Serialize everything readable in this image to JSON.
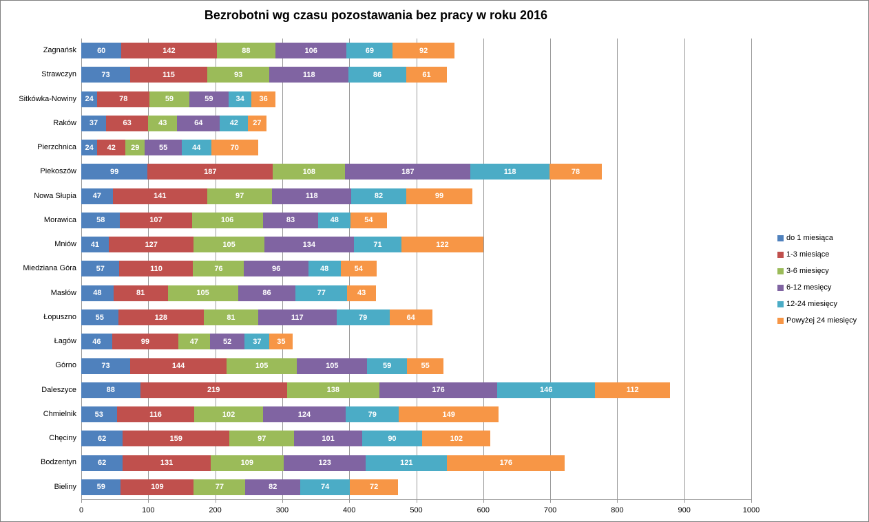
{
  "title": "Bezrobotni wg czasu pozostawania bez pracy w roku 2016",
  "chart_data": {
    "type": "bar",
    "orientation": "horizontal",
    "stacked": true,
    "title": "Bezrobotni wg czasu pozostawania bez pracy w roku 2016",
    "xlabel": "",
    "ylabel": "",
    "xlim": [
      0,
      1000
    ],
    "x_ticks": [
      0,
      100,
      200,
      300,
      400,
      500,
      600,
      700,
      800,
      900,
      1000
    ],
    "grid": "vertical",
    "legend_position": "right",
    "value_labels": "inside-white-bold",
    "categories": [
      "Zagnańsk",
      "Strawczyn",
      "Sitkówka-Nowiny",
      "Raków",
      "Pierzchnica",
      "Piekoszów",
      "Nowa Słupia",
      "Morawica",
      "Mniów",
      "Miedziana Góra",
      "Masłów",
      "Łopuszno",
      "Łagów",
      "Górno",
      "Daleszyce",
      "Chmielnik",
      "Chęciny",
      "Bodzentyn",
      "Bieliny"
    ],
    "series": [
      {
        "name": "do 1 miesiąca",
        "color": "#4F81BD",
        "values": [
          60,
          73,
          24,
          37,
          24,
          99,
          47,
          58,
          41,
          57,
          48,
          55,
          46,
          73,
          88,
          53,
          62,
          62,
          59
        ]
      },
      {
        "name": "1-3 miesiące",
        "color": "#C0504D",
        "values": [
          142,
          115,
          78,
          63,
          42,
          187,
          141,
          107,
          127,
          110,
          81,
          128,
          99,
          144,
          219,
          116,
          159,
          131,
          109
        ]
      },
      {
        "name": "3-6 miesięcy",
        "color": "#9BBB59",
        "values": [
          88,
          93,
          59,
          43,
          29,
          108,
          97,
          106,
          105,
          76,
          105,
          81,
          47,
          105,
          138,
          102,
          97,
          109,
          77
        ]
      },
      {
        "name": "6-12 mesięcy",
        "color": "#8064A2",
        "values": [
          106,
          118,
          59,
          64,
          55,
          187,
          118,
          83,
          134,
          96,
          86,
          117,
          52,
          105,
          176,
          124,
          101,
          123,
          82
        ]
      },
      {
        "name": "12-24 miesięcy",
        "color": "#4BACC6",
        "values": [
          69,
          86,
          34,
          42,
          44,
          118,
          82,
          48,
          71,
          48,
          77,
          79,
          37,
          59,
          146,
          79,
          90,
          121,
          74
        ]
      },
      {
        "name": "Powyżej 24 miesięcy",
        "color": "#F79646",
        "values": [
          92,
          61,
          36,
          27,
          70,
          78,
          99,
          54,
          122,
          54,
          43,
          64,
          35,
          55,
          112,
          149,
          102,
          176,
          72
        ]
      }
    ]
  },
  "colors": {
    "gridline": "#989898",
    "axis": "#989898",
    "frame_border": "#7f7f7f",
    "value_label_text": "#ffffff"
  }
}
